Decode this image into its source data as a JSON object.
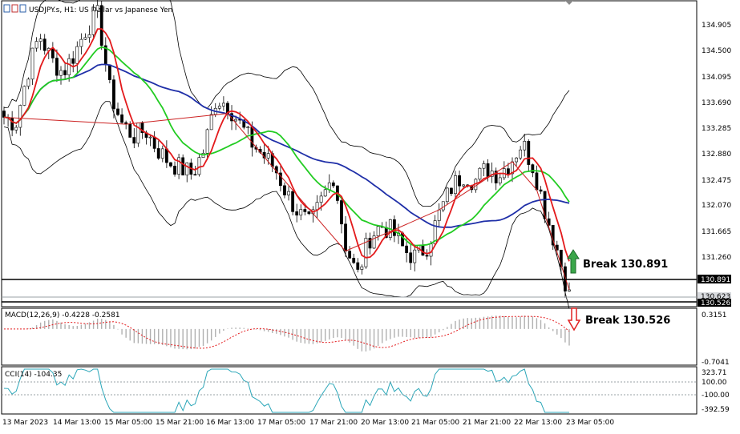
{
  "header": {
    "symbol_title": "USDJPY.s, H1:  US Dollar vs Japanese Yen",
    "toolbar_icons": [
      "chart-icon",
      "indicators-icon",
      "objects-icon"
    ]
  },
  "price_axis": {
    "ticks": [
      "134.905",
      "134.500",
      "134.095",
      "133.690",
      "133.285",
      "132.880",
      "132.475",
      "132.070",
      "131.665",
      "131.260"
    ],
    "markers": [
      {
        "label": "130.891",
        "style": "dark"
      },
      {
        "label": "130.623",
        "style": "light"
      },
      {
        "label": "130.526",
        "style": "dark"
      }
    ]
  },
  "macd_panel": {
    "label": "MACD(12,26,9) -0.4228 -0.2581",
    "ticks": [
      "0.3151",
      "-0.7041"
    ]
  },
  "cci_panel": {
    "label": "CCI(14) -104.35",
    "ticks": [
      "323.71",
      "100.00",
      "-100.00",
      "-392.59"
    ]
  },
  "time_axis": {
    "labels": [
      "13 Mar 2023",
      "14 Mar 13:00",
      "15 Mar 05:00",
      "15 Mar 21:00",
      "16 Mar 13:00",
      "17 Mar 05:00",
      "17 Mar 21:00",
      "20 Mar 13:00",
      "21 Mar 05:00",
      "21 Mar 21:00",
      "22 Mar 13:00",
      "23 Mar 05:00"
    ]
  },
  "annotations": {
    "break_up": "Break 130.891",
    "break_down": "Break 130.526"
  },
  "colors": {
    "bull_candle": "#ffffff",
    "bear_candle": "#000000",
    "ma_fast": "#e31a1c",
    "ma_mid": "#22cc22",
    "ma_slow": "#1f2fa8",
    "bollinger": "#000000",
    "zigzag": "#cc2222",
    "macd_hist": "#b0b0b0",
    "macd_signal": "#e31a1c",
    "cci_line": "#2aa6b8",
    "arrow_up": "#3aa64a",
    "arrow_down": "#e02020"
  },
  "chart_data": {
    "type": "candlestick",
    "symbol": "USDJPY.s",
    "timeframe": "H1",
    "y_range": [
      130.45,
      135.2
    ],
    "horizontal_levels": [
      130.891,
      130.526
    ],
    "close_approx": [
      133.4,
      133.3,
      134.1,
      134.7,
      134.3,
      134.1,
      134.4,
      134.8,
      135.0,
      133.8,
      133.3,
      133.1,
      133.2,
      132.9,
      132.7,
      132.6,
      132.5,
      132.9,
      133.7,
      133.6,
      133.3,
      133.0,
      132.8,
      132.6,
      132.2,
      131.9,
      131.7,
      132.1,
      132.5,
      131.4,
      130.9,
      131.5,
      131.7,
      131.6,
      131.3,
      131.2,
      131.4,
      131.9,
      132.3,
      132.5,
      132.4,
      132.6,
      132.5,
      132.7,
      133.0,
      132.6,
      131.9,
      131.3,
      130.6
    ],
    "macd": {
      "main": -0.4228,
      "signal": -0.2581,
      "y_range": [
        -0.7041,
        0.3151
      ]
    },
    "cci": {
      "value": -104.35,
      "y_range": [
        -392.59,
        323.71
      ],
      "levels": [
        100,
        -100
      ]
    }
  }
}
